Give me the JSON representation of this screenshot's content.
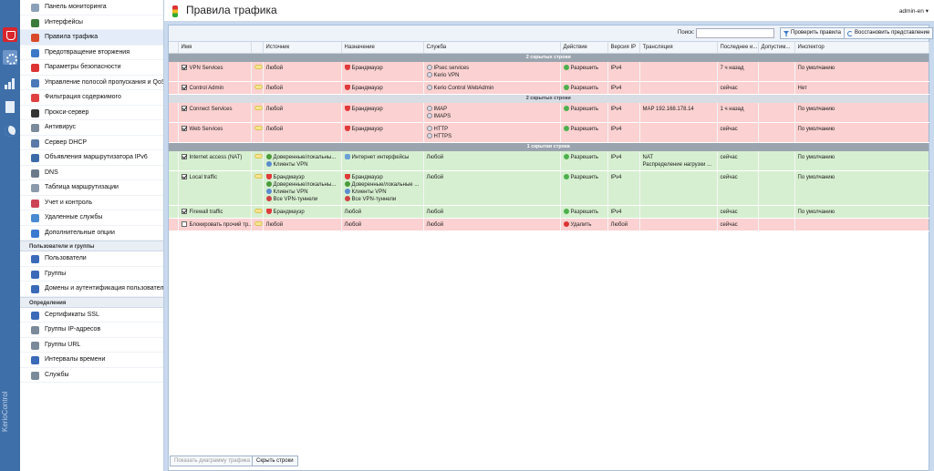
{
  "rail": {
    "brand": "KerioControl"
  },
  "sidebar": {
    "items": [
      {
        "label": "Панель мониторинга",
        "icon": "dashboard-icon",
        "color": "#8aa0b8"
      },
      {
        "label": "Интерфейсы",
        "icon": "interfaces-icon",
        "color": "#3a7a3a"
      },
      {
        "label": "Правила трафика",
        "icon": "traffic-light-icon",
        "color": "#d94a2a",
        "active": true
      },
      {
        "label": "Предотвращение вторжения",
        "icon": "shield-icon",
        "color": "#3b78c8"
      },
      {
        "label": "Параметры безопасности",
        "icon": "security-icon",
        "color": "#d33"
      },
      {
        "label": "Управление полосой пропускания и QoS",
        "icon": "bandwidth-icon",
        "color": "#4a78b8"
      },
      {
        "label": "Фильтрация содержимого",
        "icon": "filter-icon",
        "color": "#e04040"
      },
      {
        "label": "Прокси-сервер",
        "icon": "proxy-icon",
        "color": "#333"
      },
      {
        "label": "Антивирус",
        "icon": "antivirus-icon",
        "color": "#7a8a9a"
      },
      {
        "label": "Сервер DHCP",
        "icon": "dhcp-icon",
        "color": "#5a7aa8"
      },
      {
        "label": "Объявления маршрутизатора IPv6",
        "icon": "ipv6-icon",
        "color": "#3b6aa8"
      },
      {
        "label": "DNS",
        "icon": "dns-icon",
        "color": "#6a7a8a"
      },
      {
        "label": "Таблица маршрутизации",
        "icon": "routing-icon",
        "color": "#8a9aaa"
      },
      {
        "label": "Учет и контроль",
        "icon": "accounting-icon",
        "color": "#c45"
      },
      {
        "label": "Удаленные службы",
        "icon": "remote-services-icon",
        "color": "#4a8ad0"
      },
      {
        "label": "Дополнительные опции",
        "icon": "options-icon",
        "color": "#3a7ad0"
      }
    ],
    "section_users": "Пользователи и группы",
    "users_items": [
      {
        "label": "Пользователи",
        "icon": "user-icon",
        "color": "#3a6ab8"
      },
      {
        "label": "Группы",
        "icon": "groups-icon",
        "color": "#3a6ab8"
      },
      {
        "label": "Домены и аутентификация пользователей",
        "icon": "domains-icon",
        "color": "#3a6ab8"
      }
    ],
    "section_defs": "Определения",
    "defs_items": [
      {
        "label": "Сертификаты SSL",
        "icon": "certificate-icon",
        "color": "#3a6ab8"
      },
      {
        "label": "Группы IP-адресов",
        "icon": "ip-groups-icon",
        "color": "#7a8a9a"
      },
      {
        "label": "Группы URL",
        "icon": "url-groups-icon",
        "color": "#7a8a9a"
      },
      {
        "label": "Интервалы времени",
        "icon": "clock-icon",
        "color": "#3a6ab8"
      },
      {
        "label": "Службы",
        "icon": "services-icon",
        "color": "#7a8a9a"
      }
    ]
  },
  "header": {
    "title": "Правила трафика",
    "user": "admin-en"
  },
  "toolbar": {
    "search_label": "Поиск:",
    "search_value": "",
    "check_rules": "Проверить правила",
    "restore_view": "Восстановить представление"
  },
  "columns": [
    "",
    "Имя",
    "",
    "Источник",
    "Назначение",
    "Служба",
    "Действие",
    "Версия IP",
    "Трансляция",
    "Последнее и...",
    "Допустим...",
    "Инспектор"
  ],
  "colors": {
    "allow": "#d6efd0",
    "deny": "#fbd1d1",
    "group": "#9aa4ae"
  },
  "rows": [
    {
      "kind": "group",
      "label": "2 скрытых строки"
    },
    {
      "kind": "row",
      "cls": "deny",
      "checked": true,
      "name": "VPN Services",
      "note": true,
      "source": [
        {
          "t": "Любой"
        }
      ],
      "dest": [
        {
          "t": "Брандмауэр",
          "i": "fw"
        }
      ],
      "service": [
        {
          "t": "IPsec services",
          "i": "svc"
        },
        {
          "t": "Kerio VPN",
          "i": "svc"
        }
      ],
      "action": "Разрешить",
      "action_kind": "allow",
      "ip": "IPv4",
      "nat": [],
      "last": "7 ч назад",
      "quota": "",
      "inspector": "По умолчанию"
    },
    {
      "kind": "row",
      "cls": "deny",
      "checked": true,
      "name": "Control Admin",
      "note": true,
      "source": [
        {
          "t": "Любой"
        }
      ],
      "dest": [
        {
          "t": "Брандмауэр",
          "i": "fw"
        }
      ],
      "service": [
        {
          "t": "Kerio Control WebAdmin",
          "i": "svc"
        }
      ],
      "action": "Разрешить",
      "action_kind": "allow",
      "ip": "IPv4",
      "nat": [],
      "last": "сейчас",
      "quota": "",
      "inspector": "Нет"
    },
    {
      "kind": "group",
      "label": "2 скрытых строки",
      "light": true
    },
    {
      "kind": "row",
      "cls": "deny",
      "checked": true,
      "name": "Connect Services",
      "note": true,
      "source": [
        {
          "t": "Любой"
        }
      ],
      "dest": [
        {
          "t": "Брандмауэр",
          "i": "fw"
        }
      ],
      "service": [
        {
          "t": "IMAP",
          "i": "svc"
        },
        {
          "t": "IMAPS",
          "i": "svc"
        }
      ],
      "action": "Разрешить",
      "action_kind": "allow",
      "ip": "IPv4",
      "nat": [
        {
          "t": "MAP 192.168.178.14"
        }
      ],
      "last": "1 ч назад",
      "quota": "",
      "inspector": "По умолчанию"
    },
    {
      "kind": "row",
      "cls": "deny",
      "checked": true,
      "name": "Web Services",
      "note": true,
      "source": [
        {
          "t": "Любой"
        }
      ],
      "dest": [
        {
          "t": "Брандмауэр",
          "i": "fw"
        }
      ],
      "service": [
        {
          "t": "HTTP",
          "i": "svc"
        },
        {
          "t": "HTTPS",
          "i": "svc"
        }
      ],
      "action": "Разрешить",
      "action_kind": "allow",
      "ip": "IPv4",
      "nat": [],
      "last": "сейчас",
      "quota": "",
      "inspector": "По умолчанию"
    },
    {
      "kind": "group",
      "label": "1 скрытая строка"
    },
    {
      "kind": "row",
      "cls": "allow",
      "checked": true,
      "name": "Internet access (NAT)",
      "note": true,
      "source": [
        {
          "t": "Доверенные/локальны...",
          "i": "users"
        },
        {
          "t": "Клиенты VPN",
          "i": "vpn"
        }
      ],
      "dest": [
        {
          "t": "Интернет интерфейсы",
          "i": "net"
        }
      ],
      "service": [
        {
          "t": "Любой"
        }
      ],
      "action": "Разрешить",
      "action_kind": "allow",
      "ip": "IPv4",
      "nat": [
        {
          "t": "NAT"
        },
        {
          "t": "Распределение нагрузки ..."
        }
      ],
      "last": "сейчас",
      "quota": "",
      "inspector": "По умолчанию"
    },
    {
      "kind": "row",
      "cls": "allow",
      "checked": true,
      "name": "Local traffic",
      "note": true,
      "source": [
        {
          "t": "Брандмауэр",
          "i": "fw"
        },
        {
          "t": "Доверенные/локальны...",
          "i": "users"
        },
        {
          "t": "Клиенты VPN",
          "i": "vpn"
        },
        {
          "t": "Все VPN-туннели",
          "i": "tunnel"
        }
      ],
      "dest": [
        {
          "t": "Брандмауэр",
          "i": "fw"
        },
        {
          "t": "Доверенные/локальные ...",
          "i": "users"
        },
        {
          "t": "Клиенты VPN",
          "i": "vpn"
        },
        {
          "t": "Все VPN-туннели",
          "i": "tunnel"
        }
      ],
      "service": [
        {
          "t": "Любой"
        }
      ],
      "action": "Разрешить",
      "action_kind": "allow",
      "ip": "IPv4",
      "nat": [],
      "last": "сейчас",
      "quota": "",
      "inspector": "По умолчанию"
    },
    {
      "kind": "row",
      "cls": "allow",
      "checked": true,
      "name": "Firewall traffic",
      "note": true,
      "source": [
        {
          "t": "Брандмауэр",
          "i": "fw"
        }
      ],
      "dest": [
        {
          "t": "Любой"
        }
      ],
      "service": [
        {
          "t": "Любой"
        }
      ],
      "action": "Разрешить",
      "action_kind": "allow",
      "ip": "IPv4",
      "nat": [],
      "last": "сейчас",
      "quota": "",
      "inspector": "По умолчанию"
    },
    {
      "kind": "row",
      "cls": "deny",
      "checked": false,
      "name": "Блокировать прочий тр...",
      "note": true,
      "source": [
        {
          "t": "Любой"
        }
      ],
      "dest": [
        {
          "t": "Любой"
        }
      ],
      "service": [
        {
          "t": "Любой"
        }
      ],
      "action": "Удалить",
      "action_kind": "deny",
      "ip": "Любой",
      "nat": [],
      "last": "сейчас",
      "quota": "",
      "inspector": ""
    }
  ],
  "footer": {
    "show_diagram": "Показать диаграмму трафика",
    "hide_rows": "Скрыть строки"
  }
}
